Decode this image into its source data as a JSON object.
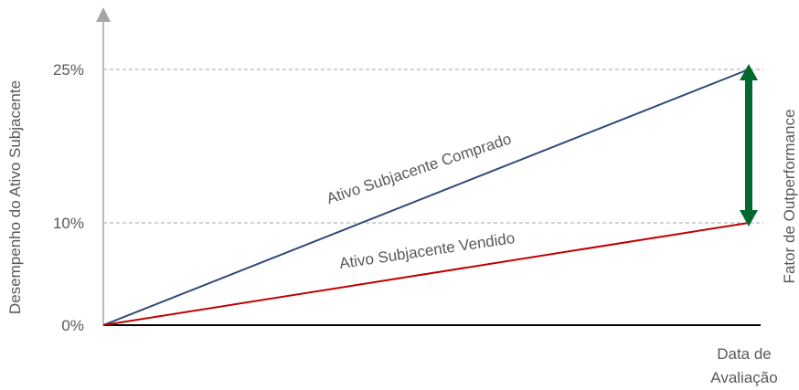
{
  "chart_data": {
    "type": "line",
    "x": [
      "0",
      "Data de Avaliação"
    ],
    "series": [
      {
        "name": "Ativo Subjacente Comprado",
        "values": [
          0,
          25
        ],
        "color": "#2e4a7a"
      },
      {
        "name": "Ativo Subjacente Vendido",
        "values": [
          0,
          10
        ],
        "color": "#c00000"
      }
    ],
    "yticks": [
      {
        "value": 0,
        "label": "0%"
      },
      {
        "value": 10,
        "label": "10%"
      },
      {
        "value": 25,
        "label": "25%"
      }
    ],
    "ylim": [
      0,
      31
    ],
    "ylabel": "Desempenho do Ativo Subjacente",
    "xlabel_line1": "Data de",
    "xlabel_line2": "Avaliação",
    "reference_lines": [
      10,
      25
    ],
    "annotation": {
      "label": "Fator de Outperformance",
      "from": 10,
      "to": 25,
      "color": "#006a2e"
    },
    "axis_color": "#000000",
    "grid_color": "#a6a6a6",
    "y_axis_arrow_color": "#a6a6a6"
  }
}
